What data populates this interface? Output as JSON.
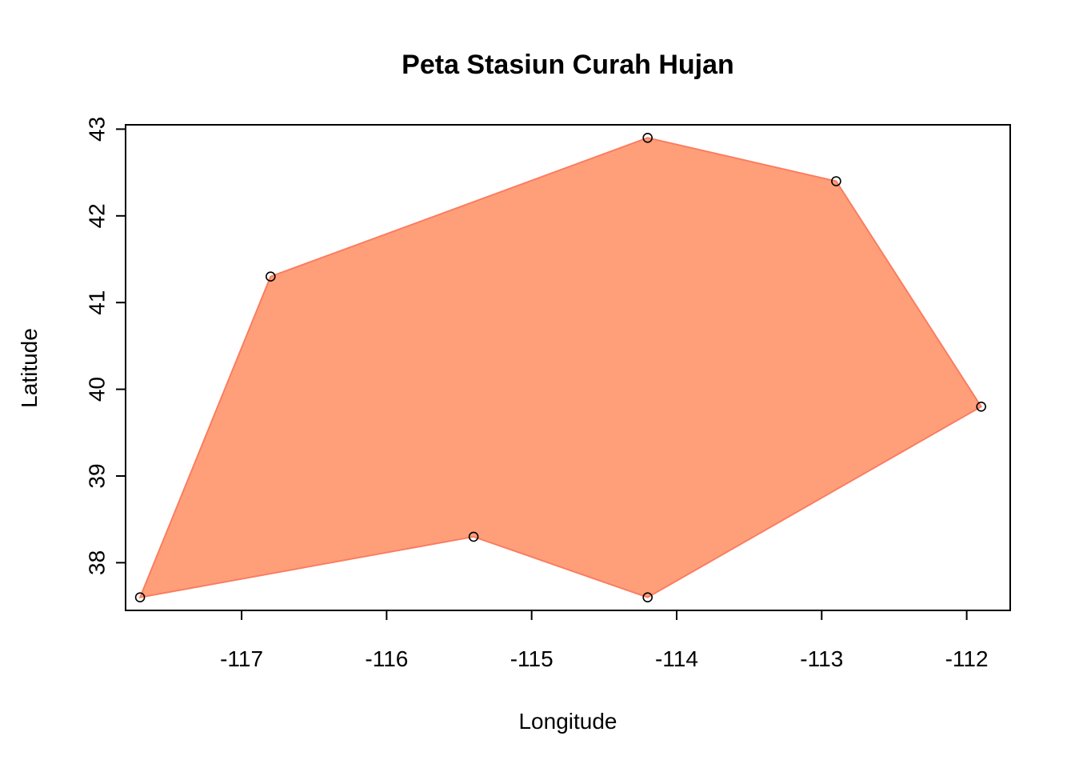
{
  "chart_data": {
    "type": "scatter",
    "title": "Peta Stasiun Curah Hujan",
    "xlabel": "Longitude",
    "ylabel": "Latitude",
    "xlim": [
      -117.8,
      -111.7
    ],
    "ylim": [
      37.45,
      43.05
    ],
    "x_ticks": [
      -117,
      -116,
      -115,
      -114,
      -113,
      -112
    ],
    "y_ticks": [
      38,
      39,
      40,
      41,
      42,
      43
    ],
    "x_tick_labels": [
      "-117",
      "-116",
      "-115",
      "-114",
      "-113",
      "-112"
    ],
    "y_tick_labels": [
      "38",
      "39",
      "40",
      "41",
      "42",
      "43"
    ],
    "points": [
      {
        "x": -117.7,
        "y": 37.6
      },
      {
        "x": -116.8,
        "y": 41.3
      },
      {
        "x": -114.2,
        "y": 42.9
      },
      {
        "x": -112.9,
        "y": 42.4
      },
      {
        "x": -111.9,
        "y": 39.8
      },
      {
        "x": -114.2,
        "y": 37.6
      },
      {
        "x": -115.4,
        "y": 38.3
      }
    ],
    "polygon": {
      "fill_color": "#FF9F7A",
      "stroke_color": "#FA7D60"
    },
    "marker": "open-circle",
    "grid": false,
    "legend": "none"
  }
}
